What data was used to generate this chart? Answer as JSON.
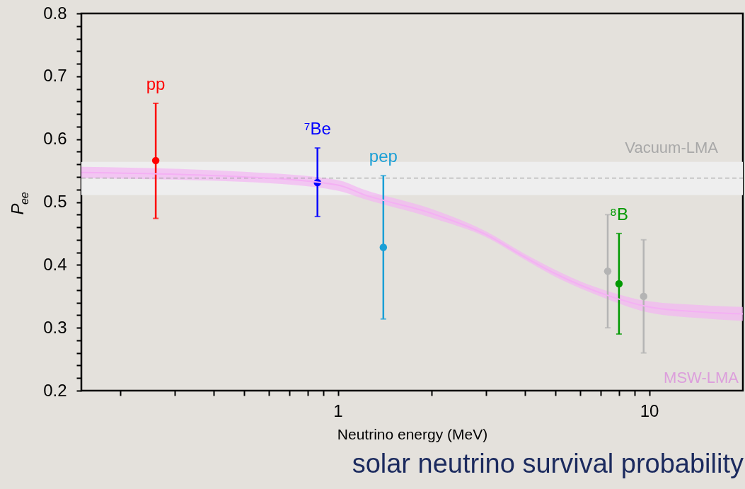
{
  "chart_data": {
    "type": "scatter",
    "title": "solar neutrino survival probability",
    "xlabel": "Neutrino energy (MeV)",
    "ylabel": "P$_{ee}$",
    "log": "x",
    "marker": "circle",
    "grid": false,
    "xlim": [
      0.15,
      20
    ],
    "ylim": [
      0.2,
      0.8
    ],
    "xticks": [
      {
        "value": 0.2,
        "label": null
      },
      {
        "value": 0.3,
        "label": null
      },
      {
        "value": 0.4,
        "label": null
      },
      {
        "value": 0.5,
        "label": null
      },
      {
        "value": 0.6,
        "label": null
      },
      {
        "value": 0.7,
        "label": null
      },
      {
        "value": 0.8,
        "label": null
      },
      {
        "value": 0.9,
        "label": null
      },
      1,
      {
        "value": 2,
        "label": null
      },
      {
        "value": 3,
        "label": null
      },
      {
        "value": 4,
        "label": null
      },
      {
        "value": 5,
        "label": null
      },
      {
        "value": 6,
        "label": null
      },
      {
        "value": 7,
        "label": null
      },
      {
        "value": 8,
        "label": null
      },
      {
        "value": 9,
        "label": null
      },
      10
    ],
    "yticks": [
      0.2,
      {
        "value": 0.22,
        "label": null
      },
      {
        "value": 0.24,
        "label": null
      },
      {
        "value": 0.26,
        "label": null
      },
      {
        "value": 0.28,
        "label": null
      },
      0.3,
      {
        "value": 0.32,
        "label": null
      },
      {
        "value": 0.34,
        "label": null
      },
      {
        "value": 0.36,
        "label": null
      },
      {
        "value": 0.38,
        "label": null
      },
      0.4,
      {
        "value": 0.42,
        "label": null
      },
      {
        "value": 0.44,
        "label": null
      },
      {
        "value": 0.46,
        "label": null
      },
      {
        "value": 0.48,
        "label": null
      },
      0.5,
      {
        "value": 0.52,
        "label": null
      },
      {
        "value": 0.54,
        "label": null
      },
      {
        "value": 0.56,
        "label": null
      },
      {
        "value": 0.58,
        "label": null
      },
      0.6,
      {
        "value": 0.62,
        "label": null
      },
      {
        "value": 0.64,
        "label": null
      },
      {
        "value": 0.66,
        "label": null
      },
      {
        "value": 0.68,
        "label": null
      },
      0.7,
      {
        "value": 0.72,
        "label": null
      },
      {
        "value": 0.74,
        "label": null
      },
      {
        "value": 0.76,
        "label": null
      },
      {
        "value": 0.78,
        "label": null
      },
      0.8
    ],
    "bands": [
      {
        "axis": "y",
        "from": 0.511,
        "to": 0.564,
        "label": "Vacuum-LMA",
        "color": "#eeeeee"
      }
    ],
    "ref_lines": [
      {
        "axis": "y",
        "value": 0.538,
        "color": "#999999",
        "line_style": "dashed"
      }
    ],
    "series": [
      {
        "name": "MSW-LMA",
        "type": "line",
        "marker": "none",
        "color": "#f4b0f4",
        "x": [
          0.15,
          0.5,
          1,
          1.21,
          2,
          3,
          4,
          5,
          6,
          7.4,
          10,
          14.8,
          20
        ],
        "values": [
          0.547,
          0.54,
          0.527,
          0.512,
          0.482,
          0.448,
          0.412,
          0.386,
          0.368,
          0.351,
          0.333,
          0.325,
          0.322
        ],
        "lower": [
          0.538,
          0.532,
          0.518,
          0.505,
          0.475,
          0.444,
          0.408,
          0.381,
          0.363,
          0.345,
          0.324,
          0.315,
          0.311
        ],
        "upper": [
          0.556,
          0.548,
          0.535,
          0.52,
          0.489,
          0.453,
          0.417,
          0.392,
          0.374,
          0.358,
          0.342,
          0.336,
          0.333
        ]
      },
      {
        "name": "pp",
        "color": "#ff0000",
        "x": [
          0.26
        ],
        "values": [
          0.566
        ],
        "errors": [
          [
            0.474,
            0.657
          ]
        ]
      },
      {
        "name": "⁷Be",
        "color": "#0000ff",
        "x": [
          0.86
        ],
        "values": [
          0.531
        ],
        "errors": [
          [
            0.477,
            0.586
          ]
        ]
      },
      {
        "name": "pep",
        "color": "#1a9fd6",
        "x": [
          1.4
        ],
        "values": [
          0.428
        ],
        "errors": [
          [
            0.314,
            0.542
          ]
        ]
      },
      {
        "color": "#b4b4b4",
        "x": [
          7.36
        ],
        "values": [
          0.39
        ],
        "errors": [
          [
            0.3,
            0.48
          ]
        ]
      },
      {
        "name": "⁸B",
        "color": "#009900",
        "x": [
          8.0
        ],
        "values": [
          0.37
        ],
        "errors": [
          [
            0.29,
            0.45
          ]
        ]
      },
      {
        "color": "#b4b4b4",
        "x": [
          9.6
        ],
        "values": [
          0.35
        ],
        "errors": [
          [
            0.26,
            0.44
          ]
        ]
      }
    ]
  }
}
